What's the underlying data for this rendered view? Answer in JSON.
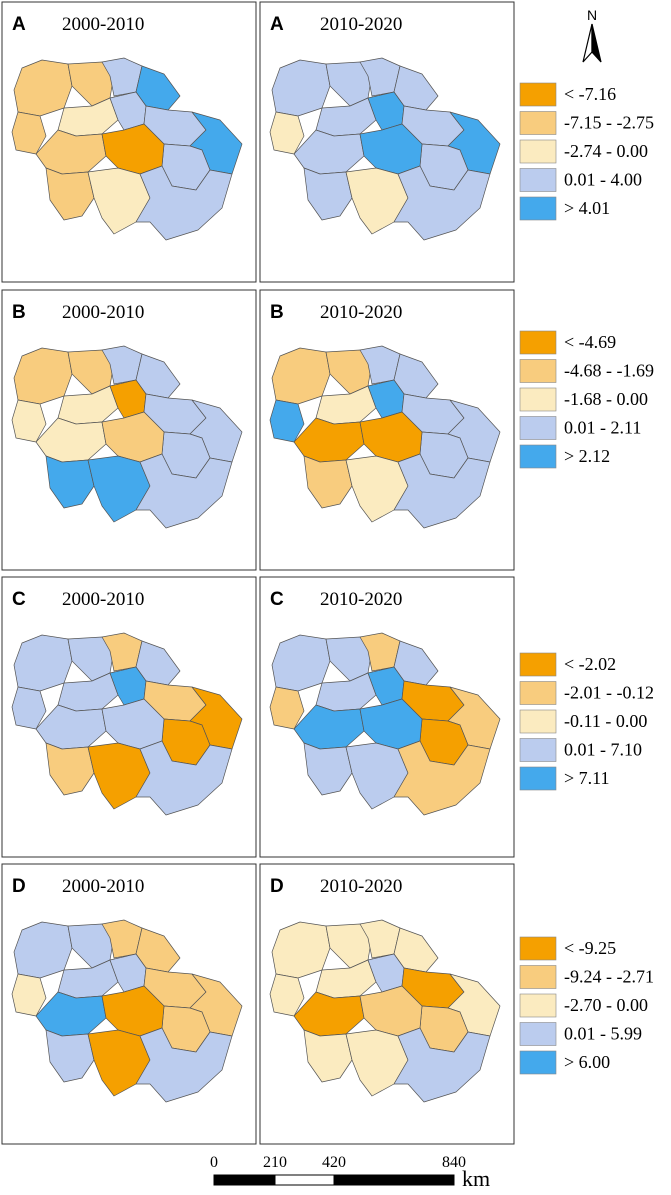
{
  "colors": {
    "dark_orange": "#F5A000",
    "light_orange": "#F8CC7E",
    "cream": "#FBEBC0",
    "light_blue": "#BBCCEE",
    "blue": "#44A9EC"
  },
  "north_arrow": {
    "label": "N",
    "icon": "north-arrow-icon"
  },
  "rows": [
    {
      "letter": "A",
      "legend": [
        "< -7.16",
        "-7.15 - -2.75",
        "-2.74 - 0.00",
        "0.01 - 4.00",
        "> 4.01"
      ],
      "panels": [
        {
          "letter": "A",
          "period": "2000-2010",
          "regions": [
            "light_orange",
            "light_orange",
            "light_blue",
            "blue",
            "light_orange",
            "cream",
            "light_blue",
            "light_blue",
            "blue",
            "light_blue",
            "light_orange",
            "dark_orange",
            "light_orange",
            "cream",
            "light_blue"
          ]
        },
        {
          "letter": "A",
          "period": "2010-2020",
          "regions": [
            "light_blue",
            "light_blue",
            "light_blue",
            "light_blue",
            "cream",
            "light_blue",
            "blue",
            "light_blue",
            "blue",
            "light_blue",
            "light_blue",
            "blue",
            "light_blue",
            "cream",
            "light_blue"
          ]
        }
      ]
    },
    {
      "letter": "B",
      "legend": [
        "< -4.69",
        "-4.68 - -1.69",
        "-1.68 - 0.00",
        "0.01 - 2.11",
        "> 2.12"
      ],
      "panels": [
        {
          "letter": "B",
          "period": "2000-2010",
          "regions": [
            "light_orange",
            "light_orange",
            "light_blue",
            "light_blue",
            "cream",
            "cream",
            "dark_orange",
            "light_blue",
            "light_blue",
            "light_blue",
            "cream",
            "light_orange",
            "blue",
            "blue",
            "light_blue"
          ]
        },
        {
          "letter": "B",
          "period": "2010-2020",
          "regions": [
            "light_orange",
            "light_orange",
            "light_blue",
            "light_blue",
            "blue",
            "cream",
            "blue",
            "light_blue",
            "light_blue",
            "light_blue",
            "dark_orange",
            "dark_orange",
            "light_orange",
            "cream",
            "light_blue"
          ]
        }
      ]
    },
    {
      "letter": "C",
      "legend": [
        "< -2.02",
        "-2.01 - -0.12",
        "-0.11 - 0.00",
        "0.01 - 7.10",
        "> 7.11"
      ],
      "panels": [
        {
          "letter": "C",
          "period": "2000-2010",
          "regions": [
            "light_blue",
            "light_blue",
            "light_orange",
            "light_blue",
            "light_blue",
            "light_blue",
            "blue",
            "light_orange",
            "dark_orange",
            "dark_orange",
            "light_blue",
            "light_blue",
            "light_orange",
            "dark_orange",
            "light_blue"
          ]
        },
        {
          "letter": "C",
          "period": "2010-2020",
          "regions": [
            "light_blue",
            "light_blue",
            "light_orange",
            "light_blue",
            "light_orange",
            "light_blue",
            "blue",
            "dark_orange",
            "light_orange",
            "dark_orange",
            "blue",
            "blue",
            "light_blue",
            "light_blue",
            "light_orange"
          ]
        }
      ]
    },
    {
      "letter": "D",
      "legend": [
        "< -9.25",
        "-9.24 - -2.71",
        "-2.70 - 0.00",
        "0.01 - 5.99",
        "> 6.00"
      ],
      "panels": [
        {
          "letter": "D",
          "period": "2000-2010",
          "regions": [
            "light_blue",
            "light_blue",
            "light_orange",
            "light_orange",
            "cream",
            "light_blue",
            "light_blue",
            "light_orange",
            "light_orange",
            "light_orange",
            "blue",
            "dark_orange",
            "light_blue",
            "dark_orange",
            "light_blue"
          ]
        },
        {
          "letter": "D",
          "period": "2010-2020",
          "regions": [
            "cream",
            "cream",
            "cream",
            "cream",
            "cream",
            "cream",
            "light_blue",
            "dark_orange",
            "cream",
            "light_orange",
            "dark_orange",
            "light_orange",
            "cream",
            "cream",
            "light_blue"
          ]
        }
      ]
    }
  ],
  "scale_bar": {
    "ticks": [
      "0",
      "210",
      "420",
      "840"
    ],
    "unit": "km"
  }
}
